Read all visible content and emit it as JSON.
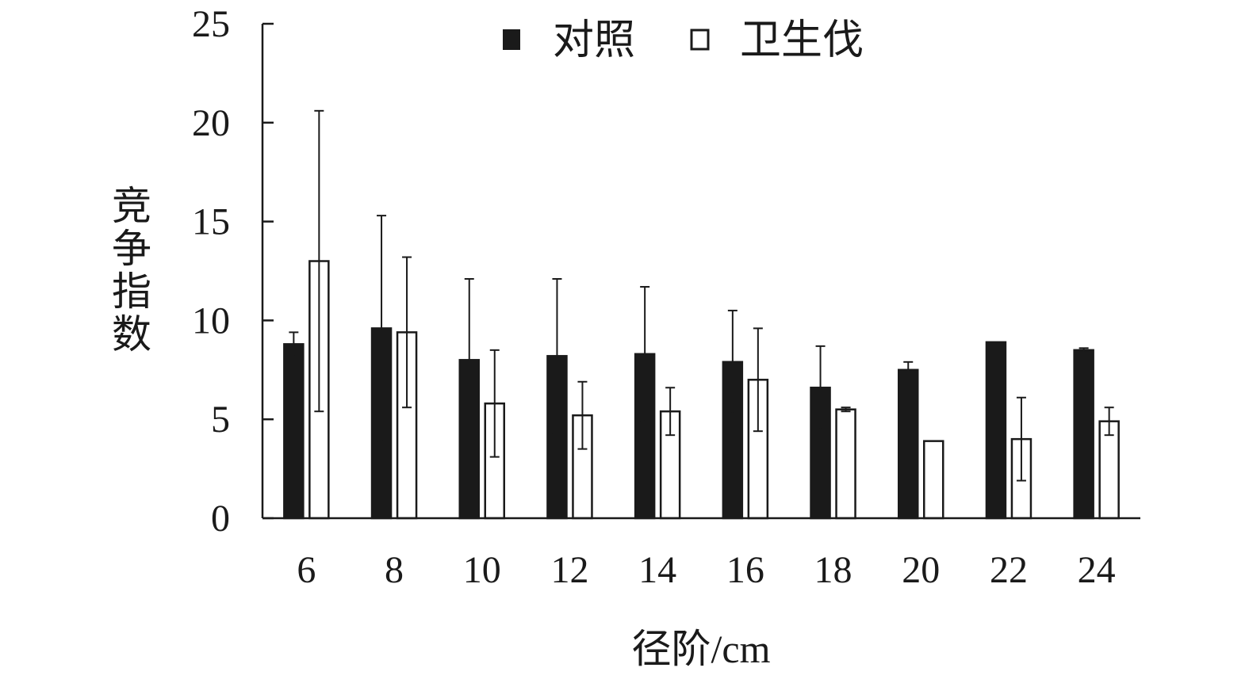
{
  "chart_data": {
    "type": "bar",
    "xlabel": "径阶/cm",
    "ylabel": "竞争指数",
    "ylim": [
      0,
      25
    ],
    "yticks": [
      0,
      5,
      10,
      15,
      20,
      25
    ],
    "grid": false,
    "legend_position": "top-center",
    "categories": [
      "6",
      "8",
      "10",
      "12",
      "14",
      "16",
      "18",
      "20",
      "22",
      "24"
    ],
    "series": [
      {
        "name": "对照",
        "color": "#1a1a1a",
        "fill": "solid",
        "values": [
          8.8,
          9.6,
          8.0,
          8.2,
          8.3,
          7.9,
          6.6,
          7.5,
          8.9,
          8.5
        ],
        "error": [
          0.6,
          5.7,
          4.1,
          3.9,
          3.4,
          2.6,
          2.1,
          0.4,
          0.0,
          0.1
        ]
      },
      {
        "name": "卫生伐",
        "color": "#ffffff",
        "fill": "hollow",
        "values": [
          13.0,
          9.4,
          5.8,
          5.2,
          5.4,
          7.0,
          5.5,
          3.9,
          4.0,
          4.9
        ],
        "error": [
          7.6,
          3.8,
          2.7,
          1.7,
          1.2,
          2.6,
          0.1,
          0.0,
          2.1,
          0.7
        ]
      }
    ]
  }
}
